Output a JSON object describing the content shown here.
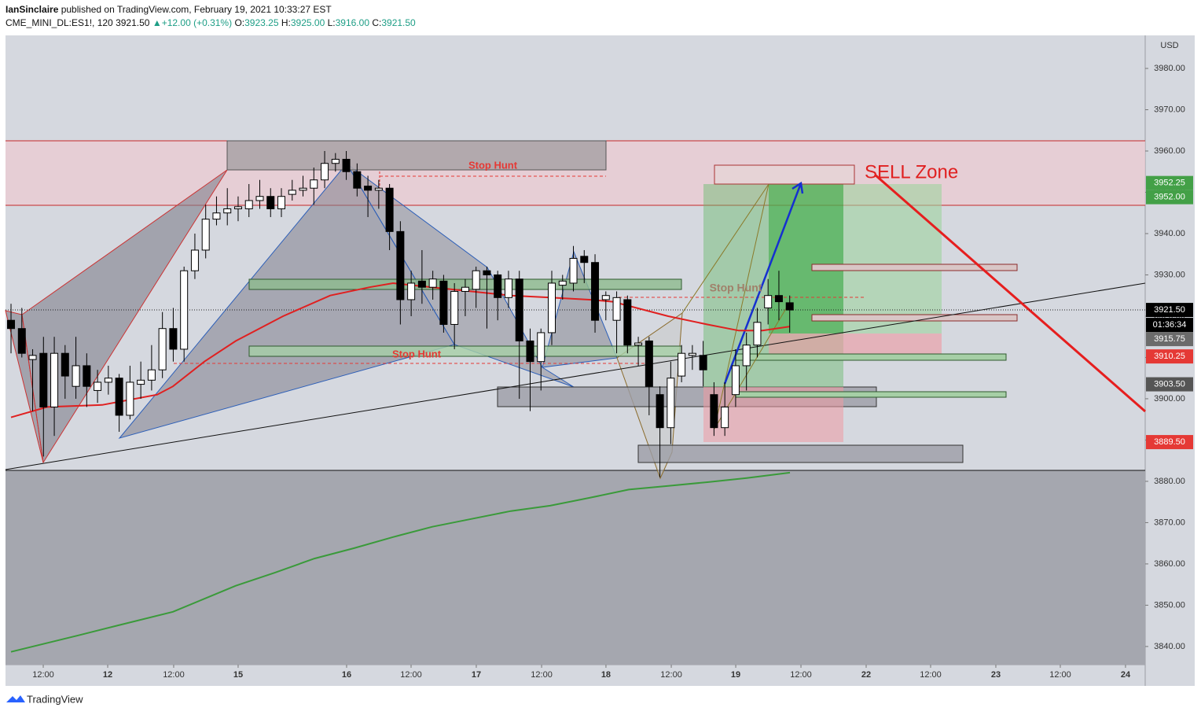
{
  "header": {
    "author": "IanSinclaire",
    "published": " published on TradingView.com, February 19, 2021 10:33:27 EST",
    "symbol": "CME_MINI_DL:ES1!, 120",
    "last": "3921.50",
    "arrow": "▲",
    "change": "+12.00 (+0.31%)",
    "o_label": "O:",
    "o": "3923.25",
    "h_label": "H:",
    "h": "3925.00",
    "l_label": "L:",
    "l": "3916.00",
    "c_label": "C:",
    "c": "3921.50"
  },
  "footer": {
    "logo": "TradingView"
  },
  "chart_data": {
    "type": "candlestick",
    "y_unit": "USD",
    "x": [
      1,
      2,
      3,
      4,
      5,
      6,
      7,
      8,
      9,
      10,
      11,
      12,
      13,
      14,
      15,
      16,
      17,
      18,
      19,
      20,
      21,
      22,
      23,
      24,
      25,
      26,
      27,
      28,
      29,
      30,
      31,
      32,
      33,
      34,
      35,
      36,
      37,
      38,
      39,
      40,
      41,
      42,
      43,
      44,
      45,
      46,
      47,
      48,
      49,
      50,
      51,
      52,
      53,
      54,
      55,
      56,
      57,
      58,
      59,
      60,
      61,
      62,
      63,
      64,
      65,
      66,
      67,
      68,
      69,
      70,
      71,
      72,
      73
    ],
    "open": [
      3919,
      3917,
      3909.5,
      3911,
      3898,
      3911,
      3903,
      3908,
      3902,
      3904,
      3905,
      3896,
      3903.5,
      3904.5,
      3907,
      3917,
      3912,
      3931,
      3936,
      3943.5,
      3945,
      3946,
      3946,
      3948,
      3949,
      3946,
      3949.5,
      3950.5,
      3951,
      3953,
      3957,
      3958,
      3955,
      3951.5,
      3950.5,
      3951,
      3940.5,
      3924,
      3928.5,
      3927,
      3928.5,
      3918,
      3926,
      3926.5,
      3931,
      3930,
      3924.5,
      3929,
      3914,
      3909,
      3916,
      3927.5,
      3928,
      3934.5,
      3933,
      3924,
      3919,
      3924,
      3913,
      3914,
      3901,
      3893,
      3905.5,
      3910.5,
      3910.5,
      3901,
      3893,
      3901,
      3908,
      3913,
      3922,
      3925,
      3923.25
    ],
    "high": [
      3923,
      3922,
      3912,
      3915,
      3915,
      3913,
      3915,
      3911,
      3907,
      3908,
      3906,
      3908,
      3909,
      3913,
      3921,
      3922,
      3932,
      3940,
      3947,
      3949,
      3951,
      3949,
      3952,
      3953,
      3951,
      3951,
      3953,
      3954,
      3956,
      3960,
      3959.5,
      3960,
      3957,
      3954,
      3953,
      3952,
      3943,
      3931,
      3936,
      3931,
      3930,
      3928,
      3929,
      3932,
      3932,
      3931,
      3931,
      3931,
      3917,
      3917,
      3931,
      3930,
      3937,
      3936,
      3935,
      3926,
      3926,
      3925,
      3915,
      3915,
      3903,
      3909,
      3913,
      3913,
      3914,
      3904,
      3904,
      3912,
      3916,
      3922,
      3929,
      3931,
      3925
    ],
    "low": [
      3911,
      3910,
      3897,
      3886,
      3891,
      3900,
      3900,
      3898,
      3899,
      3901,
      3892,
      3895,
      3900,
      3902,
      3905,
      3909,
      3909,
      3929,
      3934,
      3942,
      3942,
      3943,
      3944,
      3946,
      3944,
      3944,
      3948,
      3949,
      3947,
      3951,
      3955,
      3953,
      3949,
      3944,
      3946,
      3936,
      3918,
      3920,
      3923,
      3924,
      3916,
      3912,
      3920,
      3922,
      3917,
      3919,
      3922,
      3900,
      3897,
      3902,
      3913,
      3924,
      3926,
      3928,
      3916,
      3919,
      3911,
      3911,
      3908,
      3896,
      3881,
      3889,
      3904,
      3907,
      3903,
      3891,
      3891,
      3898,
      3902,
      3910,
      3918,
      3919,
      3916
    ],
    "close": [
      3917,
      3911,
      3910.5,
      3898,
      3911,
      3905.5,
      3908,
      3903,
      3904,
      3905,
      3896,
      3904,
      3904.5,
      3907,
      3917,
      3912,
      3931,
      3936,
      3943.5,
      3945,
      3946,
      3946.5,
      3948,
      3949,
      3946,
      3949,
      3950.5,
      3951,
      3953,
      3957,
      3958,
      3955,
      3951,
      3950.5,
      3951,
      3940.5,
      3924,
      3928,
      3927,
      3929,
      3918,
      3926,
      3927,
      3931,
      3930,
      3924.5,
      3929,
      3914,
      3909,
      3916,
      3928,
      3928.5,
      3934,
      3933,
      3919,
      3925,
      3924.5,
      3913,
      3913.5,
      3903,
      3893,
      3905,
      3911,
      3911,
      3907,
      3893,
      3898,
      3908,
      3913,
      3918.5,
      3925,
      3923.5,
      3921.5
    ],
    "up_color": "#ffffff",
    "down_color": "#000000",
    "wick_color": "#000000",
    "overlays": [
      {
        "color": "#e02020",
        "x": [
          1,
          4.34,
          9.43,
          14.52,
          15.97,
          18.88,
          21.78,
          26.15,
          30.51,
          34.14,
          36.32,
          39.95,
          43.59,
          47.22,
          50.85,
          54.49,
          56.67,
          58.85,
          61.76,
          65.39,
          68.3,
          70.48,
          73.02
        ],
        "values": [
          3895.5,
          3898,
          3898.5,
          3901,
          3903,
          3909,
          3914,
          3920,
          3925,
          3927,
          3928,
          3927,
          3926,
          3925,
          3924.5,
          3924,
          3923.5,
          3922,
          3920,
          3918,
          3916.5,
          3916.5,
          3917.5
        ]
      },
      {
        "color": "#3a9a3a",
        "x": [
          1,
          7.25,
          10.88,
          15.97,
          21.78,
          25.42,
          29.05,
          32.69,
          36.32,
          39.95,
          43.59,
          47.22,
          50.85,
          54.49,
          58.12,
          61.76,
          65.39,
          69.02,
          73.02
        ],
        "values": [
          3838.7,
          3842.7,
          3845.1,
          3848.4,
          3854.7,
          3857.9,
          3861.3,
          3863.8,
          3866.5,
          3869,
          3870.9,
          3872.8,
          3874.1,
          3876,
          3878,
          3878.9,
          3879.8,
          3880.8,
          3882.1
        ]
      }
    ],
    "xlim": [
      0.49,
      105.87
    ],
    "xticks": [
      {
        "value": 3.98,
        "label": "12:00"
      },
      {
        "value": 9.94,
        "label": "12"
      },
      {
        "value": 16.04,
        "label": "12:00"
      },
      {
        "value": 22.0,
        "label": "15"
      },
      {
        "value": 32.03,
        "label": "16"
      },
      {
        "value": 37.99,
        "label": "12:00"
      },
      {
        "value": 44.02,
        "label": "17"
      },
      {
        "value": 50.06,
        "label": "12:00"
      },
      {
        "value": 56.01,
        "label": "18"
      },
      {
        "value": 62.05,
        "label": "12:00"
      },
      {
        "value": 68.01,
        "label": "19"
      },
      {
        "value": 74.04,
        "label": "12:00"
      },
      {
        "value": 80.07,
        "label": "22"
      },
      {
        "value": 86.03,
        "label": "12:00"
      },
      {
        "value": 92.06,
        "label": "23"
      },
      {
        "value": 98.02,
        "label": "12:00"
      },
      {
        "value": 104.05,
        "label": "24"
      }
    ],
    "ylim": [
      3835.6,
      3988
    ],
    "yticks": [
      {
        "value": 3840,
        "label": "3840.00"
      },
      {
        "value": 3850,
        "label": "3850.00"
      },
      {
        "value": 3860,
        "label": "3860.00"
      },
      {
        "value": 3870,
        "label": "3870.00"
      },
      {
        "value": 3880,
        "label": "3880.00"
      },
      {
        "value": 3890,
        "label": "3890.00"
      },
      {
        "value": 3900,
        "label": "3900.00"
      },
      {
        "value": 3910,
        "label": "3910.00"
      },
      {
        "value": 3920,
        "label": "3920.00"
      },
      {
        "value": 3930,
        "label": "3930.00"
      },
      {
        "value": 3940,
        "label": "3940.00"
      },
      {
        "value": 3950,
        "label": "3950.00"
      },
      {
        "value": 3960,
        "label": "3960.00"
      },
      {
        "value": 3970,
        "label": "3970.00"
      },
      {
        "value": 3980,
        "label": "3980.00"
      }
    ],
    "price_labels": [
      {
        "value": 3952.25,
        "label": "3952.25",
        "color": "#43a047"
      },
      {
        "value": 3952,
        "label": "3952.00",
        "color": "#43a047"
      },
      {
        "value": 3921.5,
        "label": "3921.50",
        "color": "#000000"
      },
      {
        "value": 3915.75,
        "label": "3915.75",
        "color": "#6b6b6b"
      },
      {
        "value": 3910.25,
        "label": "3910.25",
        "color": "#e53935"
      },
      {
        "value": 3903.5,
        "label": "3903.50",
        "color": "#555555"
      },
      {
        "value": 3889.5,
        "label": "3889.50",
        "color": "#e53935"
      }
    ],
    "countdown": "01:36:34",
    "annotations": [
      "Stop Hunt",
      "Stop Hunt",
      "Stop Hunt",
      "SELL Zone"
    ]
  }
}
